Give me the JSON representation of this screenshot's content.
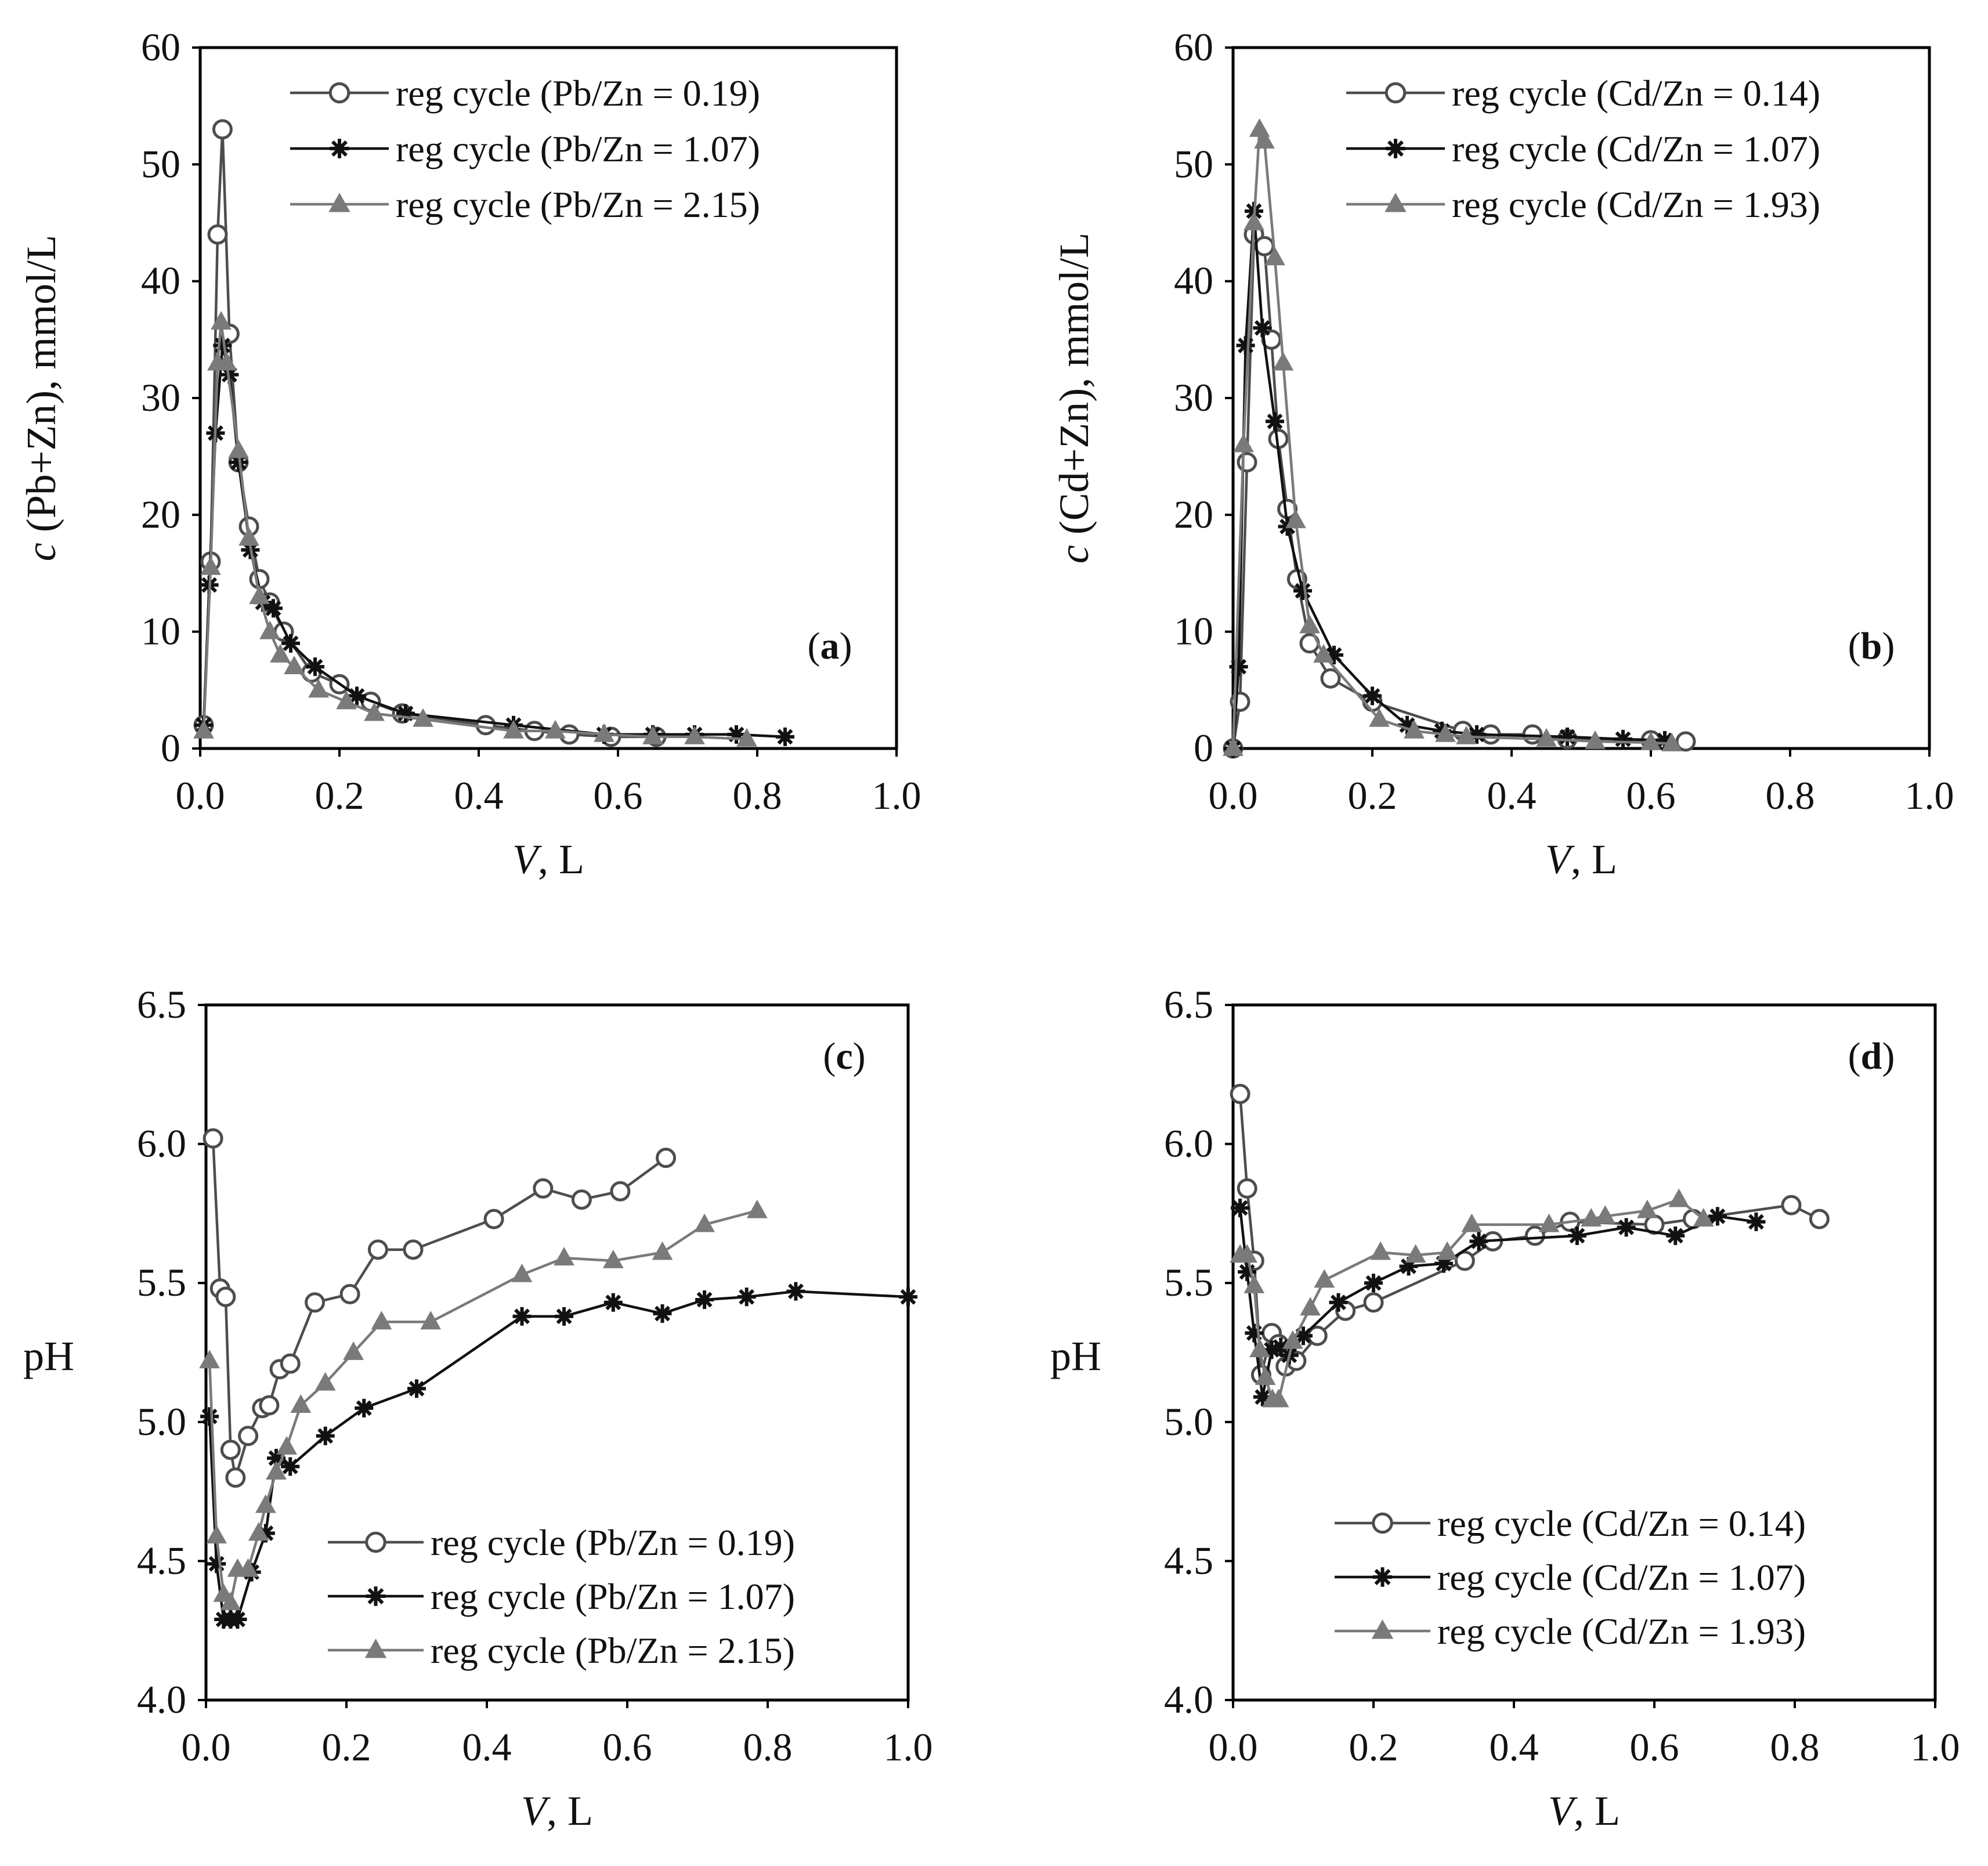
{
  "figure": {
    "styles": {
      "open_circle": {
        "color": "#4d4d4d"
      },
      "star": {
        "color": "#111111"
      },
      "triangle": {
        "color": "#7a7a7a"
      }
    }
  },
  "chart_data": [
    {
      "id": "a",
      "type": "line",
      "panel_label": "a",
      "xlabel_var": "V",
      "xlabel_unit": ", L",
      "ylabel_var": "c",
      "ylabel_rest": " (Pb+Zn), mmol/L",
      "xlim": [
        0,
        1.0
      ],
      "ylim": [
        0,
        60
      ],
      "xticks": [
        "0.0",
        "0.2",
        "0.4",
        "0.6",
        "0.8",
        "1.0"
      ],
      "xtick_values": [
        0,
        0.2,
        0.4,
        0.6,
        0.8,
        1.0
      ],
      "yticks": [
        "0",
        "10",
        "20",
        "30",
        "40",
        "50",
        "60"
      ],
      "ytick_values": [
        0,
        10,
        20,
        30,
        40,
        50,
        60
      ],
      "legend_position": "top-right",
      "series": [
        {
          "name": "reg cycle (Pb/Zn = 0.19)",
          "marker": "open_circle",
          "x": [
            0.005,
            0.015,
            0.025,
            0.032,
            0.042,
            0.055,
            0.07,
            0.085,
            0.1,
            0.12,
            0.16,
            0.2,
            0.245,
            0.29,
            0.41,
            0.48,
            0.53,
            0.59,
            0.655
          ],
          "y": [
            2.0,
            16.0,
            44.0,
            53.0,
            35.5,
            24.5,
            19.0,
            14.5,
            12.5,
            10.0,
            6.5,
            5.5,
            4.0,
            3.0,
            2.0,
            1.5,
            1.2,
            1.0,
            1.0
          ]
        },
        {
          "name": "reg cycle (Pb/Zn = 1.07)",
          "marker": "star",
          "x": [
            0.005,
            0.013,
            0.022,
            0.032,
            0.042,
            0.055,
            0.072,
            0.09,
            0.105,
            0.13,
            0.165,
            0.225,
            0.295,
            0.45,
            0.58,
            0.65,
            0.71,
            0.77,
            0.84
          ],
          "y": [
            2.0,
            14.0,
            27.0,
            34.5,
            32.0,
            24.5,
            17.0,
            12.5,
            12.0,
            9.0,
            7.0,
            4.5,
            3.0,
            2.0,
            1.2,
            1.2,
            1.2,
            1.2,
            1.0
          ]
        },
        {
          "name": "reg cycle (Pb/Zn = 2.15)",
          "marker": "triangle",
          "x": [
            0.005,
            0.015,
            0.025,
            0.03,
            0.038,
            0.055,
            0.07,
            0.085,
            0.1,
            0.115,
            0.135,
            0.17,
            0.21,
            0.25,
            0.32,
            0.45,
            0.51,
            0.58,
            0.65,
            0.71,
            0.785
          ],
          "y": [
            1.5,
            15.5,
            33.0,
            36.5,
            33.0,
            25.5,
            18.0,
            13.0,
            10.0,
            8.0,
            7.0,
            5.0,
            4.0,
            3.0,
            2.5,
            1.5,
            1.5,
            1.2,
            1.0,
            1.0,
            0.8
          ]
        }
      ]
    },
    {
      "id": "b",
      "type": "line",
      "panel_label": "b",
      "xlabel_var": "V",
      "xlabel_unit": ", L",
      "ylabel_var": "c",
      "ylabel_rest": " (Cd+Zn), mmol/L",
      "xlim": [
        0,
        1.0
      ],
      "ylim": [
        0,
        60
      ],
      "xticks": [
        "0.0",
        "0.2",
        "0.4",
        "0.6",
        "0.8",
        "1.0"
      ],
      "xtick_values": [
        0,
        0.2,
        0.4,
        0.6,
        0.8,
        1.0
      ],
      "yticks": [
        "0",
        "10",
        "20",
        "30",
        "40",
        "50",
        "60"
      ],
      "ytick_values": [
        0,
        10,
        20,
        30,
        40,
        50,
        60
      ],
      "legend_position": "top-right",
      "series": [
        {
          "name": "reg cycle (Cd/Zn = 0.14)",
          "marker": "open_circle",
          "x": [
            0.0,
            0.01,
            0.02,
            0.03,
            0.045,
            0.055,
            0.065,
            0.078,
            0.092,
            0.11,
            0.14,
            0.2,
            0.33,
            0.37,
            0.43,
            0.48,
            0.6,
            0.65
          ],
          "y": [
            0.0,
            4.0,
            24.5,
            44.0,
            43.0,
            35.0,
            26.5,
            20.5,
            14.5,
            9.0,
            6.0,
            4.0,
            1.5,
            1.2,
            1.2,
            0.8,
            0.7,
            0.6
          ]
        },
        {
          "name": "reg cycle (Cd/Zn = 1.07)",
          "marker": "star",
          "x": [
            0.0,
            0.008,
            0.018,
            0.03,
            0.042,
            0.06,
            0.078,
            0.1,
            0.145,
            0.2,
            0.25,
            0.3,
            0.35,
            0.48,
            0.56,
            0.62
          ],
          "y": [
            0.0,
            7.0,
            34.5,
            46.0,
            36.0,
            28.0,
            19.0,
            13.5,
            8.0,
            4.5,
            2.0,
            1.5,
            1.2,
            1.0,
            0.8,
            0.7
          ]
        },
        {
          "name": "reg cycle (Cd/Zn = 1.93)",
          "marker": "triangle",
          "x": [
            0.0,
            0.015,
            0.03,
            0.038,
            0.045,
            0.06,
            0.072,
            0.09,
            0.11,
            0.13,
            0.21,
            0.26,
            0.305,
            0.335,
            0.45,
            0.52,
            0.6,
            0.63
          ],
          "y": [
            0.0,
            26.0,
            45.0,
            53.0,
            52.0,
            42.0,
            33.0,
            19.5,
            10.5,
            8.0,
            2.5,
            1.5,
            1.2,
            1.0,
            0.8,
            0.6,
            0.5,
            0.4
          ]
        }
      ]
    },
    {
      "id": "c",
      "type": "line",
      "panel_label": "c",
      "xlabel_var": "V",
      "xlabel_unit": ", L",
      "ylabel_var": "",
      "ylabel_rest": "pH",
      "xlim": [
        0,
        1.0
      ],
      "ylim": [
        4.0,
        6.5
      ],
      "xticks": [
        "0.0",
        "0.2",
        "0.4",
        "0.6",
        "0.8",
        "1.0"
      ],
      "xtick_values": [
        0,
        0.2,
        0.4,
        0.6,
        0.8,
        1.0
      ],
      "yticks": [
        "4.0",
        "4.5",
        "5.0",
        "5.5",
        "6.0",
        "6.5"
      ],
      "ytick_values": [
        4.0,
        4.5,
        5.0,
        5.5,
        6.0,
        6.5
      ],
      "legend_position": "bottom-right",
      "series": [
        {
          "name": "reg cycle (Pb/Zn = 0.19)",
          "marker": "open_circle",
          "x": [
            0.01,
            0.02,
            0.028,
            0.035,
            0.042,
            0.06,
            0.08,
            0.09,
            0.105,
            0.12,
            0.155,
            0.205,
            0.245,
            0.295,
            0.41,
            0.48,
            0.535,
            0.59,
            0.655
          ],
          "y": [
            6.02,
            5.48,
            5.45,
            4.9,
            4.8,
            4.95,
            5.05,
            5.06,
            5.19,
            5.21,
            5.43,
            5.46,
            5.62,
            5.62,
            5.73,
            5.84,
            5.8,
            5.83,
            5.95
          ]
        },
        {
          "name": "reg cycle (Pb/Zn = 1.07)",
          "marker": "star",
          "x": [
            0.005,
            0.015,
            0.025,
            0.035,
            0.045,
            0.065,
            0.085,
            0.1,
            0.12,
            0.17,
            0.225,
            0.3,
            0.45,
            0.51,
            0.58,
            0.65,
            0.71,
            0.77,
            0.84,
            1.0
          ],
          "y": [
            5.02,
            4.49,
            4.29,
            4.29,
            4.29,
            4.46,
            4.6,
            4.87,
            4.84,
            4.95,
            5.05,
            5.12,
            5.38,
            5.38,
            5.43,
            5.39,
            5.44,
            5.45,
            5.47,
            5.45
          ]
        },
        {
          "name": "reg cycle (Pb/Zn = 2.15)",
          "marker": "triangle",
          "x": [
            0.005,
            0.015,
            0.025,
            0.035,
            0.045,
            0.06,
            0.075,
            0.085,
            0.1,
            0.115,
            0.135,
            0.17,
            0.21,
            0.25,
            0.32,
            0.45,
            0.51,
            0.58,
            0.65,
            0.71,
            0.785
          ],
          "y": [
            5.22,
            4.59,
            4.38,
            4.35,
            4.47,
            4.47,
            4.6,
            4.7,
            4.82,
            4.91,
            5.06,
            5.14,
            5.25,
            5.36,
            5.36,
            5.53,
            5.59,
            5.58,
            5.61,
            5.71,
            5.76
          ]
        }
      ]
    },
    {
      "id": "d",
      "type": "line",
      "panel_label": "d",
      "xlabel_var": "V",
      "xlabel_unit": ", L",
      "ylabel_var": "",
      "ylabel_rest": "pH",
      "xlim": [
        0,
        1.0
      ],
      "ylim": [
        4.0,
        6.5
      ],
      "xticks": [
        "0.0",
        "0.2",
        "0.4",
        "0.6",
        "0.8",
        "1.0"
      ],
      "xtick_values": [
        0,
        0.2,
        0.4,
        0.6,
        0.8,
        1.0
      ],
      "yticks": [
        "4.0",
        "4.5",
        "5.0",
        "5.5",
        "6.0",
        "6.5"
      ],
      "ytick_values": [
        4.0,
        4.5,
        5.0,
        5.5,
        6.0,
        6.5
      ],
      "legend_position": "bottom-right",
      "series": [
        {
          "name": "reg cycle (Cd/Zn = 0.14)",
          "marker": "open_circle",
          "x": [
            0.01,
            0.02,
            0.03,
            0.04,
            0.055,
            0.065,
            0.075,
            0.09,
            0.12,
            0.16,
            0.2,
            0.33,
            0.37,
            0.43,
            0.48,
            0.6,
            0.655,
            0.795,
            0.835
          ],
          "y": [
            6.18,
            5.84,
            5.58,
            5.17,
            5.32,
            5.28,
            5.2,
            5.22,
            5.31,
            5.4,
            5.43,
            5.58,
            5.65,
            5.67,
            5.72,
            5.71,
            5.73,
            5.78,
            5.73
          ]
        },
        {
          "name": "reg cycle (Cd/Zn = 1.07)",
          "marker": "star",
          "x": [
            0.01,
            0.02,
            0.03,
            0.042,
            0.055,
            0.068,
            0.08,
            0.1,
            0.15,
            0.2,
            0.25,
            0.3,
            0.35,
            0.49,
            0.56,
            0.63,
            0.69,
            0.745
          ],
          "y": [
            5.77,
            5.54,
            5.32,
            5.09,
            5.26,
            5.27,
            5.24,
            5.31,
            5.43,
            5.5,
            5.56,
            5.57,
            5.65,
            5.67,
            5.7,
            5.67,
            5.74,
            5.72
          ]
        },
        {
          "name": "reg cycle (Cd/Zn = 1.93)",
          "marker": "triangle",
          "x": [
            0.01,
            0.02,
            0.03,
            0.038,
            0.046,
            0.056,
            0.065,
            0.085,
            0.11,
            0.13,
            0.21,
            0.26,
            0.305,
            0.34,
            0.45,
            0.51,
            0.53,
            0.59,
            0.635,
            0.67
          ],
          "y": [
            5.6,
            5.6,
            5.49,
            5.26,
            5.16,
            5.08,
            5.08,
            5.29,
            5.41,
            5.51,
            5.61,
            5.6,
            5.61,
            5.71,
            5.71,
            5.73,
            5.74,
            5.76,
            5.8,
            5.73
          ]
        }
      ]
    }
  ]
}
